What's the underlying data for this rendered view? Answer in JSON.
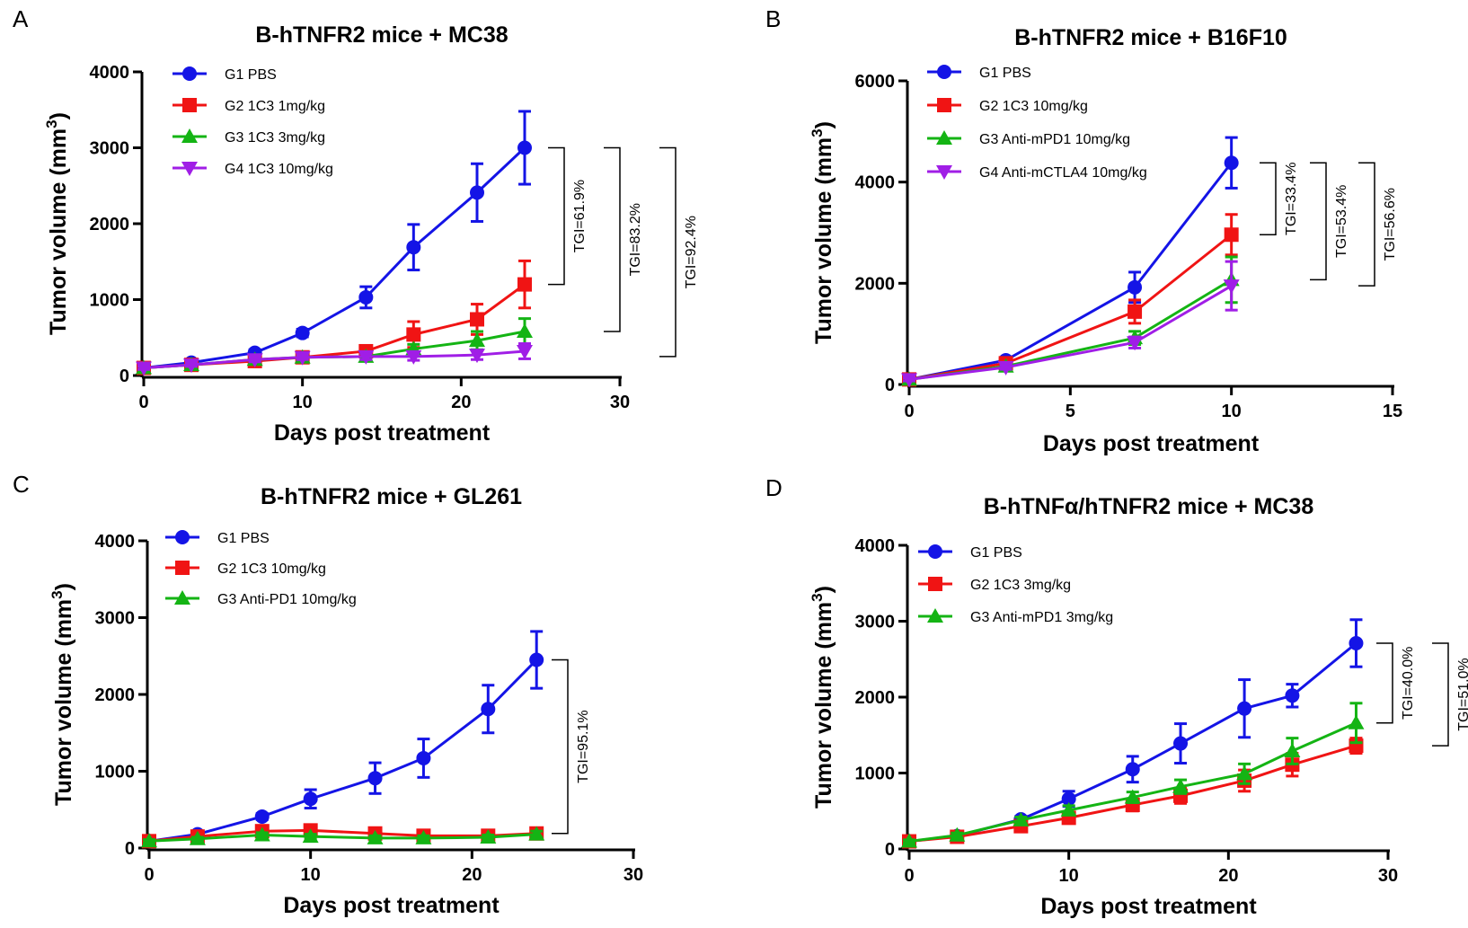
{
  "chart_data": [
    {
      "panel": "A",
      "type": "line",
      "title": "B-hTNFR2 mice + MC38",
      "xlabel": "Days post treatment",
      "ylabel": "Tumor volume (mm3)",
      "xlim": [
        0,
        30
      ],
      "ylim": [
        0,
        4000
      ],
      "xticks": [
        0,
        10,
        20,
        30
      ],
      "yticks": [
        0,
        1000,
        2000,
        3000,
        4000
      ],
      "legend_position": "top-left",
      "series": [
        {
          "name": "G1 PBS",
          "color": "#1414e6",
          "marker": "circle",
          "x": [
            0,
            3,
            7,
            10,
            14,
            17,
            21,
            24
          ],
          "y": [
            100,
            170,
            300,
            560,
            1030,
            1690,
            2410,
            3000
          ],
          "err": [
            20,
            25,
            40,
            50,
            140,
            300,
            380,
            480
          ]
        },
        {
          "name": "G2 1C3 1mg/kg",
          "color": "#f01414",
          "marker": "square",
          "x": [
            0,
            3,
            7,
            10,
            14,
            17,
            21,
            24
          ],
          "y": [
            100,
            140,
            190,
            240,
            320,
            540,
            740,
            1200
          ],
          "err": [
            20,
            20,
            30,
            40,
            60,
            170,
            200,
            310
          ]
        },
        {
          "name": "G3 1C3 3mg/kg",
          "color": "#14b414",
          "marker": "triangle",
          "x": [
            0,
            3,
            7,
            10,
            14,
            17,
            21,
            24
          ],
          "y": [
            100,
            140,
            210,
            240,
            250,
            350,
            460,
            580
          ],
          "err": [
            20,
            20,
            30,
            40,
            40,
            60,
            120,
            170
          ]
        },
        {
          "name": "G4 1C3 10mg/kg",
          "color": "#a01ee6",
          "marker": "triangle-down",
          "x": [
            0,
            3,
            7,
            10,
            14,
            17,
            21,
            24
          ],
          "y": [
            100,
            140,
            210,
            240,
            250,
            250,
            270,
            320
          ],
          "err": [
            20,
            20,
            30,
            30,
            40,
            50,
            60,
            100
          ]
        }
      ],
      "annotations": [
        {
          "text": "TGI=61.9%",
          "y_top": 3000,
          "y_bottom": 1200
        },
        {
          "text": "TGI=83.2%",
          "y_top": 3000,
          "y_bottom": 580
        },
        {
          "text": "TGI=92.4%",
          "y_top": 3000,
          "y_bottom": 250
        }
      ]
    },
    {
      "panel": "B",
      "type": "line",
      "title": "B-hTNFR2 mice + B16F10",
      "xlabel": "Days post treatment",
      "ylabel": "Tumor volume (mm3)",
      "xlim": [
        0,
        15
      ],
      "ylim": [
        0,
        6000
      ],
      "xticks": [
        0,
        5,
        10,
        15
      ],
      "yticks": [
        0,
        2000,
        4000,
        6000
      ],
      "legend_position": "top-left",
      "series": [
        {
          "name": "G1 PBS",
          "color": "#1414e6",
          "marker": "circle",
          "x": [
            0,
            3,
            7,
            10
          ],
          "y": [
            100,
            480,
            1920,
            4380
          ],
          "err": [
            30,
            50,
            300,
            500
          ]
        },
        {
          "name": "G2 1C3 10mg/kg",
          "color": "#f01414",
          "marker": "square",
          "x": [
            0,
            3,
            7,
            10
          ],
          "y": [
            100,
            420,
            1440,
            2960
          ],
          "err": [
            30,
            50,
            230,
            400
          ]
        },
        {
          "name": "G3 Anti-mPD1 10mg/kg",
          "color": "#14b414",
          "marker": "triangle",
          "x": [
            0,
            3,
            7,
            10
          ],
          "y": [
            100,
            360,
            920,
            2070
          ],
          "err": [
            30,
            40,
            130,
            450
          ]
        },
        {
          "name": "G4 Anti-mCTLA4 10mg/kg",
          "color": "#a01ee6",
          "marker": "triangle-down",
          "x": [
            0,
            3,
            7,
            10
          ],
          "y": [
            100,
            340,
            830,
            1950
          ],
          "err": [
            30,
            40,
            110,
            480
          ]
        }
      ],
      "annotations": [
        {
          "text": "TGI=33.4%",
          "y_top": 4380,
          "y_bottom": 2960
        },
        {
          "text": "TGI=53.4%",
          "y_top": 4380,
          "y_bottom": 2070
        },
        {
          "text": "TGI=56.6%",
          "y_top": 4380,
          "y_bottom": 1950
        }
      ]
    },
    {
      "panel": "C",
      "type": "line",
      "title": "B-hTNFR2 mice + GL261",
      "xlabel": "Days post treatment",
      "ylabel": "Tumor volume (mm3)",
      "xlim": [
        0,
        30
      ],
      "ylim": [
        0,
        4000
      ],
      "xticks": [
        0,
        10,
        20,
        30
      ],
      "yticks": [
        0,
        1000,
        2000,
        3000,
        4000
      ],
      "legend_position": "top-left",
      "series": [
        {
          "name": "G1 PBS",
          "color": "#1414e6",
          "marker": "circle",
          "x": [
            0,
            3,
            7,
            10,
            14,
            17,
            21,
            24
          ],
          "y": [
            90,
            180,
            410,
            640,
            910,
            1170,
            1810,
            2450
          ],
          "err": [
            20,
            30,
            40,
            120,
            200,
            250,
            310,
            370
          ]
        },
        {
          "name": "G2 1C3 10mg/kg",
          "color": "#f01414",
          "marker": "square",
          "x": [
            0,
            3,
            7,
            10,
            14,
            17,
            21,
            24
          ],
          "y": [
            90,
            150,
            220,
            230,
            190,
            160,
            160,
            190
          ],
          "err": [
            20,
            20,
            40,
            50,
            40,
            40,
            40,
            50
          ]
        },
        {
          "name": "G3 Anti-PD1 10mg/kg",
          "color": "#14b414",
          "marker": "triangle",
          "x": [
            0,
            3,
            7,
            10,
            14,
            17,
            21,
            24
          ],
          "y": [
            90,
            120,
            170,
            150,
            130,
            130,
            140,
            180
          ],
          "err": [
            20,
            20,
            30,
            30,
            30,
            30,
            30,
            40
          ]
        }
      ],
      "annotations": [
        {
          "text": "TGI=95.1%",
          "y_top": 2450,
          "y_bottom": 190
        }
      ]
    },
    {
      "panel": "D",
      "type": "line",
      "title": "B-hTNFα/hTNFR2 mice + MC38",
      "xlabel": "Days post treatment",
      "ylabel": "Tumor volume (mm3)",
      "xlim": [
        0,
        30
      ],
      "ylim": [
        0,
        4000
      ],
      "xticks": [
        0,
        10,
        20,
        30
      ],
      "yticks": [
        0,
        1000,
        2000,
        3000,
        4000
      ],
      "legend_position": "top-left",
      "series": [
        {
          "name": "G1 PBS",
          "color": "#1414e6",
          "marker": "circle",
          "x": [
            0,
            3,
            7,
            10,
            14,
            17,
            21,
            24,
            28
          ],
          "y": [
            100,
            170,
            390,
            660,
            1050,
            1390,
            1850,
            2020,
            2710
          ],
          "err": [
            20,
            30,
            40,
            100,
            170,
            260,
            380,
            150,
            310
          ]
        },
        {
          "name": "G2 1C3 3mg/kg",
          "color": "#f01414",
          "marker": "square",
          "x": [
            0,
            3,
            7,
            10,
            14,
            17,
            21,
            24,
            28
          ],
          "y": [
            100,
            160,
            300,
            410,
            580,
            700,
            900,
            1110,
            1360
          ],
          "err": [
            20,
            20,
            40,
            60,
            80,
            100,
            140,
            150,
            100
          ]
        },
        {
          "name": "G3 Anti-mPD1 3mg/kg",
          "color": "#14b414",
          "marker": "triangle",
          "x": [
            0,
            3,
            7,
            10,
            14,
            17,
            21,
            24,
            28
          ],
          "y": [
            100,
            180,
            380,
            510,
            680,
            820,
            990,
            1290,
            1660
          ],
          "err": [
            20,
            30,
            40,
            60,
            70,
            90,
            130,
            170,
            260
          ]
        }
      ],
      "annotations": [
        {
          "text": "TGI=40.0%",
          "y_top": 2710,
          "y_bottom": 1660
        },
        {
          "text": "TGI=51.0%",
          "y_top": 2710,
          "y_bottom": 1360
        }
      ]
    }
  ]
}
